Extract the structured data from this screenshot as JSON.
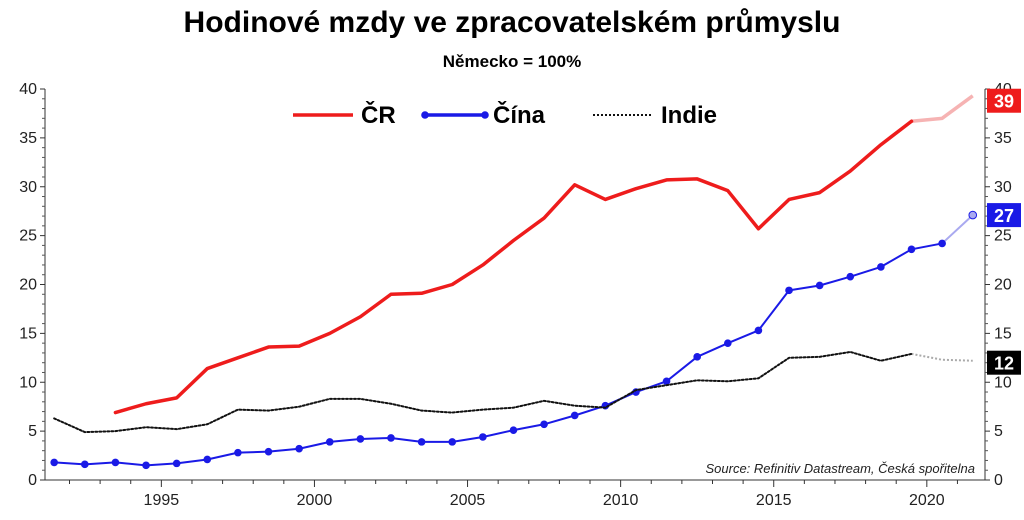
{
  "title": "Hodinové mzdy ve zpracovatelském průmyslu",
  "subtitle": "Německo = 100%",
  "source": "Source: Refinitiv Datastream, Česká spořitelna",
  "chart_data": {
    "type": "line",
    "title": "Hodinové mzdy ve zpracovatelském průmyslu",
    "subtitle": "Německo = 100%",
    "xlabel": "",
    "ylabel": "",
    "xlim": [
      1991.2,
      2021.9
    ],
    "ylim": [
      0,
      40
    ],
    "x_ticks": [
      "1995",
      "2000",
      "2005",
      "2010",
      "2015",
      "2020"
    ],
    "y_ticks": [
      "0",
      "5",
      "10",
      "15",
      "20",
      "25",
      "30",
      "35",
      "40"
    ],
    "grid": false,
    "legend": "top-center",
    "series": [
      {
        "name": "ČR",
        "color": "#ee1c1c",
        "projection_color": "#f6b3b3",
        "style": "solid",
        "markers": false,
        "x": [
          1993.5,
          1994.5,
          1995.5,
          1996.5,
          1997.5,
          1998.5,
          1999.5,
          2000.5,
          2001.5,
          2002.5,
          2003.5,
          2004.5,
          2005.5,
          2006.5,
          2007.5,
          2008.5,
          2009.5,
          2010.5,
          2011.5,
          2012.5,
          2013.5,
          2014.5,
          2015.5,
          2016.5,
          2017.5,
          2018.5,
          2019.5
        ],
        "values": [
          6.9,
          7.8,
          8.4,
          11.4,
          12.5,
          13.6,
          13.7,
          15.0,
          16.7,
          19.0,
          19.1,
          20.0,
          22.0,
          24.5,
          26.8,
          30.2,
          28.7,
          29.8,
          30.7,
          30.8,
          29.6,
          25.7,
          28.7,
          29.4,
          31.6,
          34.3,
          36.7
        ],
        "projection_x": [
          2019.5,
          2020.5,
          2021.5
        ],
        "projection_values": [
          36.7,
          37.0,
          39.3
        ],
        "end_label": "39",
        "end_label_value": 38.8,
        "end_label_color": "#ee1c1c"
      },
      {
        "name": "Čína",
        "color": "#1a1ae6",
        "projection_color": "#a9a9f0",
        "style": "solid",
        "markers": true,
        "x": [
          1991.5,
          1992.5,
          1993.5,
          1994.5,
          1995.5,
          1996.5,
          1997.5,
          1998.5,
          1999.5,
          2000.5,
          2001.5,
          2002.5,
          2003.5,
          2004.5,
          2005.5,
          2006.5,
          2007.5,
          2008.5,
          2009.5,
          2010.5,
          2011.5,
          2012.5,
          2013.5,
          2014.5,
          2015.5,
          2016.5,
          2017.5,
          2018.5,
          2019.5,
          2020.5
        ],
        "values": [
          1.8,
          1.6,
          1.8,
          1.5,
          1.7,
          2.1,
          2.8,
          2.9,
          3.2,
          3.9,
          4.2,
          4.3,
          3.9,
          3.9,
          4.4,
          5.1,
          5.7,
          6.6,
          7.6,
          9.0,
          10.1,
          12.6,
          14.0,
          15.3,
          19.4,
          19.9,
          20.8,
          21.8,
          23.6,
          24.2
        ],
        "projection_x": [
          2020.5,
          2021.5
        ],
        "projection_values": [
          24.2,
          27.1
        ],
        "end_label": "27",
        "end_label_value": 27.1,
        "end_label_color": "#1a1ae6"
      },
      {
        "name": "Indie",
        "color": "#111111",
        "projection_color": "#aaaaaa",
        "style": "dotted",
        "markers": false,
        "x": [
          1991.5,
          1992.5,
          1993.5,
          1994.5,
          1995.5,
          1996.5,
          1997.5,
          1998.5,
          1999.5,
          2000.5,
          2001.5,
          2002.5,
          2003.5,
          2004.5,
          2005.5,
          2006.5,
          2007.5,
          2008.5,
          2009.5,
          2010.5,
          2011.5,
          2012.5,
          2013.5,
          2014.5,
          2015.5,
          2016.5,
          2017.5,
          2018.5,
          2019.5
        ],
        "values": [
          6.3,
          4.9,
          5.0,
          5.4,
          5.2,
          5.7,
          7.2,
          7.1,
          7.5,
          8.3,
          8.3,
          7.8,
          7.1,
          6.9,
          7.2,
          7.4,
          8.1,
          7.6,
          7.4,
          9.2,
          9.7,
          10.2,
          10.1,
          10.4,
          12.5,
          12.6,
          13.1,
          12.2,
          12.9
        ],
        "projection_x": [
          2019.5,
          2020.5,
          2021.5
        ],
        "projection_values": [
          12.9,
          12.3,
          12.2
        ],
        "end_label": "12",
        "end_label_value": 12.0,
        "end_label_color": "#000000"
      }
    ]
  }
}
